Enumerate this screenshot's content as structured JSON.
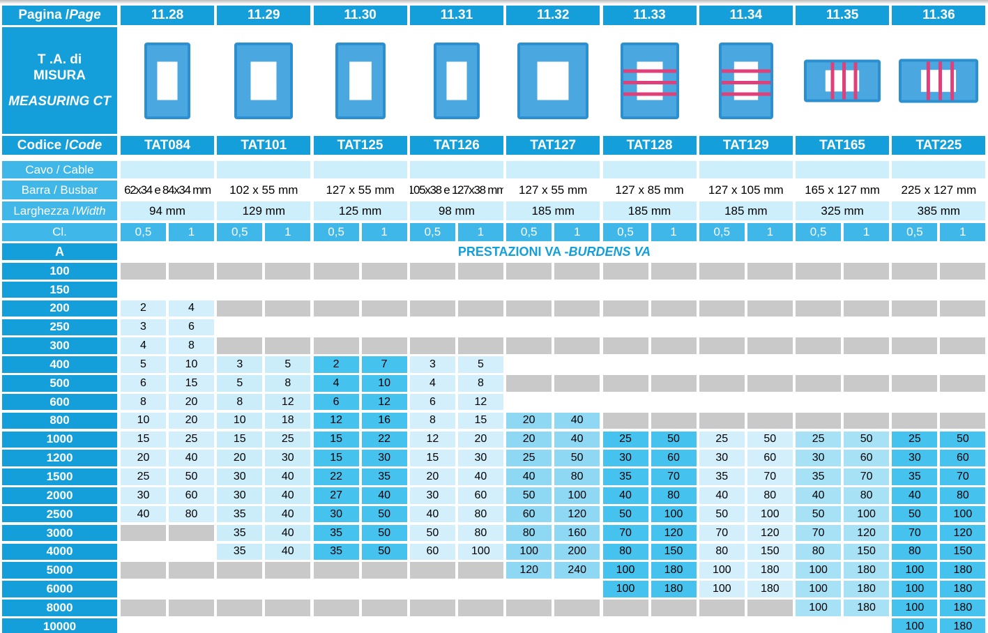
{
  "header": {
    "page_label": "Pagina / ",
    "page_label_italic": "Page",
    "pages": [
      "11.28",
      "11.29",
      "11.30",
      "11.31",
      "11.32",
      "11.33",
      "11.34",
      "11.35",
      "11.36"
    ]
  },
  "product_label": {
    "lines": [
      "T .A. di",
      "MISURA"
    ],
    "italic": "MEASURING CT"
  },
  "code_label": "Codice / ",
  "code_label_italic": "Code",
  "codes": [
    "TAT084",
    "TAT101",
    "TAT125",
    "TAT126",
    "TAT127",
    "TAT128",
    "TAT129",
    "TAT165",
    "TAT225"
  ],
  "specs": {
    "cable_label": "Cavo / Cable",
    "busbar_label": "Barra / Busbar",
    "busbars": [
      "62x34 e 84x34 mm",
      "102 x 55 mm",
      "127 x 55 mm",
      "105x38 e 127x38 mm",
      "127 x 55 mm",
      "127 x 85 mm",
      "127 x 105 mm",
      "165 x 127 mm",
      "225 x 127 mm"
    ],
    "width_label": "Larghezza / ",
    "width_label_italic": "Width",
    "widths": [
      "94 mm",
      "129 mm",
      "125 mm",
      "98 mm",
      "185 mm",
      "185 mm",
      "185 mm",
      "325 mm",
      "385 mm"
    ]
  },
  "class_label": "Cl.",
  "classes": [
    "0,5",
    "1"
  ],
  "amp_label": "A",
  "burdens_title": "PRESTAZIONI VA - ",
  "burdens_title_italic": "BURDENS VA",
  "rows": [
    {
      "amps": 100,
      "values": [
        null,
        null,
        null,
        null,
        null,
        null,
        null,
        null,
        null,
        null,
        null,
        null,
        null,
        null,
        null,
        null,
        null,
        null
      ]
    },
    {
      "amps": 150,
      "values": [
        null,
        null,
        null,
        null,
        null,
        null,
        null,
        null,
        null,
        null,
        null,
        null,
        null,
        null,
        null,
        null,
        null,
        null
      ]
    },
    {
      "amps": 200,
      "values": [
        2,
        4,
        null,
        null,
        null,
        null,
        null,
        null,
        null,
        null,
        null,
        null,
        null,
        null,
        null,
        null,
        null,
        null
      ]
    },
    {
      "amps": 250,
      "values": [
        3,
        6,
        null,
        null,
        null,
        null,
        null,
        null,
        null,
        null,
        null,
        null,
        null,
        null,
        null,
        null,
        null,
        null
      ]
    },
    {
      "amps": 300,
      "values": [
        4,
        8,
        null,
        null,
        null,
        null,
        null,
        null,
        null,
        null,
        null,
        null,
        null,
        null,
        null,
        null,
        null,
        null
      ]
    },
    {
      "amps": 400,
      "values": [
        5,
        10,
        3,
        5,
        2,
        7,
        3,
        5,
        null,
        null,
        null,
        null,
        null,
        null,
        null,
        null,
        null,
        null
      ]
    },
    {
      "amps": 500,
      "values": [
        6,
        15,
        5,
        8,
        4,
        10,
        4,
        8,
        null,
        null,
        null,
        null,
        null,
        null,
        null,
        null,
        null,
        null
      ]
    },
    {
      "amps": 600,
      "values": [
        8,
        20,
        8,
        12,
        6,
        12,
        6,
        12,
        null,
        null,
        null,
        null,
        null,
        null,
        null,
        null,
        null,
        null
      ]
    },
    {
      "amps": 800,
      "values": [
        10,
        20,
        10,
        18,
        12,
        16,
        8,
        15,
        20,
        40,
        null,
        null,
        null,
        null,
        null,
        null,
        null,
        null
      ]
    },
    {
      "amps": 1000,
      "values": [
        15,
        25,
        15,
        25,
        15,
        22,
        12,
        20,
        20,
        40,
        25,
        50,
        25,
        50,
        25,
        50,
        25,
        50
      ]
    },
    {
      "amps": 1200,
      "values": [
        20,
        40,
        20,
        30,
        15,
        30,
        15,
        30,
        25,
        50,
        30,
        60,
        30,
        60,
        30,
        60,
        30,
        60
      ]
    },
    {
      "amps": 1500,
      "values": [
        25,
        50,
        30,
        40,
        22,
        35,
        20,
        40,
        40,
        80,
        35,
        70,
        35,
        70,
        35,
        70,
        35,
        70
      ]
    },
    {
      "amps": 2000,
      "values": [
        30,
        60,
        30,
        40,
        27,
        40,
        30,
        60,
        50,
        100,
        40,
        80,
        40,
        80,
        40,
        80,
        40,
        80
      ]
    },
    {
      "amps": 2500,
      "values": [
        40,
        80,
        35,
        40,
        30,
        50,
        40,
        80,
        60,
        120,
        50,
        100,
        50,
        100,
        50,
        100,
        50,
        100
      ]
    },
    {
      "amps": 3000,
      "values": [
        null,
        null,
        35,
        40,
        35,
        50,
        50,
        80,
        80,
        160,
        70,
        120,
        70,
        120,
        70,
        120,
        70,
        120
      ]
    },
    {
      "amps": 4000,
      "values": [
        null,
        null,
        35,
        40,
        35,
        50,
        60,
        100,
        100,
        200,
        80,
        150,
        80,
        150,
        80,
        150,
        80,
        150
      ]
    },
    {
      "amps": 5000,
      "values": [
        null,
        null,
        null,
        null,
        null,
        null,
        null,
        null,
        120,
        240,
        100,
        180,
        100,
        180,
        100,
        180,
        100,
        180
      ]
    },
    {
      "amps": 6000,
      "values": [
        null,
        null,
        null,
        null,
        null,
        null,
        null,
        null,
        null,
        null,
        100,
        180,
        100,
        180,
        100,
        180,
        100,
        180
      ]
    },
    {
      "amps": 8000,
      "values": [
        null,
        null,
        null,
        null,
        null,
        null,
        null,
        null,
        null,
        null,
        null,
        null,
        null,
        null,
        100,
        180,
        100,
        180
      ]
    },
    {
      "amps": 10000,
      "values": [
        null,
        null,
        null,
        null,
        null,
        null,
        null,
        null,
        null,
        null,
        null,
        null,
        null,
        null,
        null,
        null,
        100,
        180
      ]
    }
  ]
}
